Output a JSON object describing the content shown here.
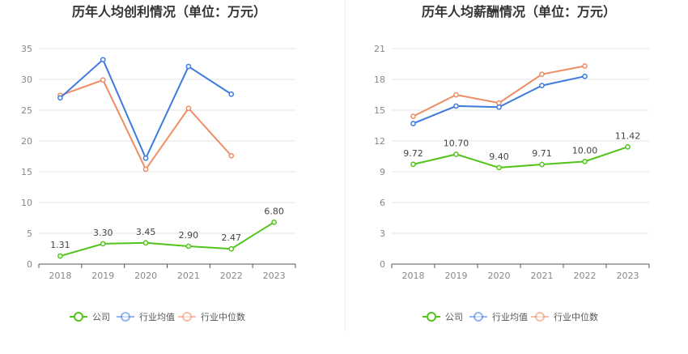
{
  "chart_data": [
    {
      "type": "line",
      "title": "历年人均创利情况（单位：万元）",
      "categories": [
        "2018",
        "2019",
        "2020",
        "2021",
        "2022",
        "2023"
      ],
      "ylim": [
        0,
        35
      ],
      "yticks": [
        0,
        5,
        10,
        15,
        20,
        25,
        30,
        35
      ],
      "series": [
        {
          "name": "公司",
          "color": "#52c41a",
          "values": [
            1.31,
            3.3,
            3.45,
            2.9,
            2.47,
            6.8
          ],
          "labels": [
            "1.31",
            "3.30",
            "3.45",
            "2.90",
            "2.47",
            "6.80"
          ]
        },
        {
          "name": "行业均值",
          "color": "#3e7bde",
          "values": [
            27.0,
            33.2,
            17.2,
            32.1,
            27.6,
            null
          ]
        },
        {
          "name": "行业中位数",
          "color": "#f08c64",
          "values": [
            27.4,
            29.9,
            15.4,
            25.3,
            17.6,
            null
          ]
        }
      ],
      "grid": true,
      "legend": "bottom-center"
    },
    {
      "type": "line",
      "title": "历年人均薪酬情况（单位：万元）",
      "categories": [
        "2018",
        "2019",
        "2020",
        "2021",
        "2022",
        "2023"
      ],
      "ylim": [
        0,
        21
      ],
      "yticks": [
        0,
        3,
        6,
        9,
        12,
        15,
        18,
        21
      ],
      "series": [
        {
          "name": "公司",
          "color": "#52c41a",
          "values": [
            9.72,
            10.7,
            9.4,
            9.71,
            10.0,
            11.42
          ],
          "labels": [
            "9.72",
            "10.70",
            "9.40",
            "9.71",
            "10.00",
            "11.42"
          ]
        },
        {
          "name": "行业均值",
          "color": "#3e7bde",
          "values": [
            13.7,
            15.4,
            15.3,
            17.4,
            18.3,
            null
          ]
        },
        {
          "name": "行业中位数",
          "color": "#f08c64",
          "values": [
            14.4,
            16.5,
            15.7,
            18.5,
            19.3,
            null
          ]
        }
      ],
      "grid": true,
      "legend": "bottom-center"
    }
  ]
}
